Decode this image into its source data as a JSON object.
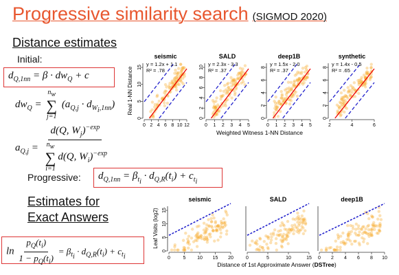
{
  "title": "Progressive similarity search",
  "venue": "(SIGMOD 2020)",
  "section1": "Distance estimates",
  "initial_label": "Initial:",
  "progressive_label": "Progressive:",
  "section2": [
    "Estimates for",
    "Exact Answers"
  ],
  "formulas": {
    "initial": [
      "d",
      "Q,1nn",
      "= β · dw",
      "Q",
      "+ c"
    ],
    "dw": [
      "dw",
      "Q",
      "=",
      "n",
      "w",
      "∑",
      "j=1",
      "(a",
      "Q,j",
      "· d",
      "W",
      "i",
      ",1nn",
      ")"
    ],
    "a": [
      "a",
      "Q,j",
      "=",
      "d(Q, W",
      "j",
      ")",
      "−exp",
      "n",
      "w",
      "∑",
      "i=1",
      "d(Q, W",
      "i",
      ")",
      "−exp"
    ],
    "progressive": [
      "d",
      "Q,1nn",
      "= β",
      "t",
      "i",
      "· d",
      "Q,R",
      "(t",
      "i",
      ") + c",
      "t",
      "i"
    ],
    "exact": [
      "ln",
      "p",
      "Q",
      "(t",
      "i",
      ")",
      "1 − p",
      "Q",
      "(t",
      "i",
      ")",
      "= β",
      "t",
      "i",
      "· d",
      "Q,R",
      "(t",
      "i",
      ") + c",
      "t",
      "i"
    ]
  },
  "top_plots": {
    "y_label": "Real 1-NN Distance",
    "x_label": "Weighted Witness 1-NN Distance",
    "panels": [
      {
        "name": "seismic",
        "fit": "y = 1.2x + 1.1",
        "r2": "R² = .78",
        "xticks": [
          0,
          2,
          4,
          6,
          8,
          10,
          12
        ],
        "yticks": [
          0,
          5,
          10,
          15
        ]
      },
      {
        "name": "SALD",
        "fit": "y = 2.3x - 3.3",
        "r2": "R² = .37",
        "xticks": [
          0,
          1,
          2,
          3,
          4,
          5
        ],
        "yticks": [
          0,
          2,
          4,
          6,
          8,
          10
        ]
      },
      {
        "name": "deep1B",
        "fit": "y = 1.5x - 2.0",
        "r2": "R² = .37",
        "xticks": [
          0,
          1,
          2,
          3,
          4,
          5
        ],
        "yticks": [
          0,
          2,
          4,
          6,
          8
        ]
      },
      {
        "name": "synthetic",
        "fit": "y = 1.4x - 0.5",
        "r2": "R² = .65",
        "xticks": [
          2,
          4,
          6
        ],
        "yticks": [
          0,
          2,
          4,
          6,
          8
        ]
      }
    ]
  },
  "bottom_plots": {
    "y_label": "Leaf Visits (log2)",
    "x_label": "Distance of 1st Approximate Answer (",
    "x_label_bold": "DSTree",
    "x_label_end": ")",
    "panels": [
      {
        "name": "seismic",
        "xticks": [
          0,
          5,
          10,
          15,
          20
        ],
        "yticks": [
          0,
          5,
          10,
          15
        ]
      },
      {
        "name": "SALD",
        "xticks": [
          0,
          5,
          10,
          15
        ],
        "yticks": []
      },
      {
        "name": "deep1B",
        "xticks": [
          0,
          2,
          4,
          6,
          8,
          10
        ],
        "yticks": []
      }
    ]
  }
}
